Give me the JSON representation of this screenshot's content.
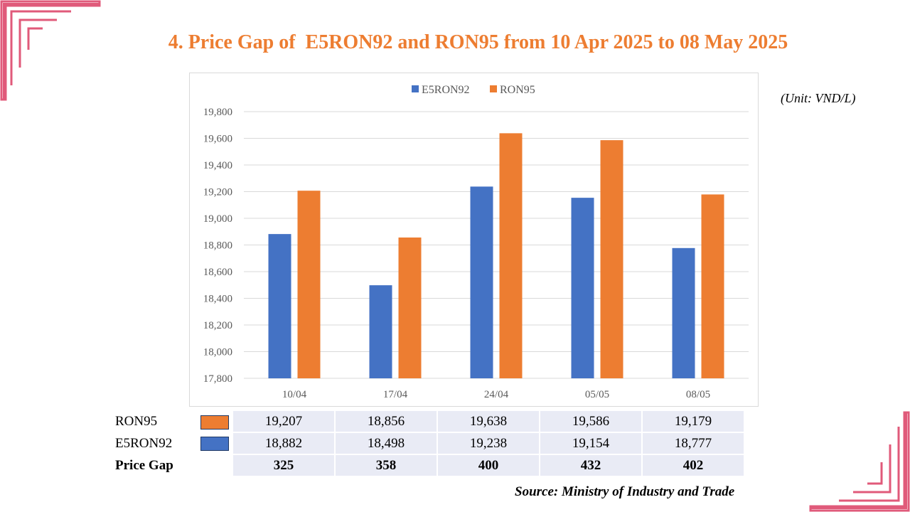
{
  "slide": {
    "title": "4. Price Gap of  E5RON92 and RON95 from 10 Apr 2025 to 08 May 2025",
    "unit": "(Unit: VND/L)",
    "source": "Source: Ministry of Industry and Trade"
  },
  "colors": {
    "accent": "#ed7d31",
    "blue": "#4472c4",
    "deco": "#e05a7a"
  },
  "chart_data": {
    "type": "bar",
    "categories": [
      "10/04",
      "17/04",
      "24/04",
      "05/05",
      "08/05"
    ],
    "series": [
      {
        "name": "E5RON92",
        "color": "#4472c4",
        "values": [
          18882,
          18498,
          19238,
          19154,
          18777
        ]
      },
      {
        "name": "RON95",
        "color": "#ed7d31",
        "values": [
          19207,
          18856,
          19638,
          19586,
          19179
        ]
      }
    ],
    "ylim": [
      17800,
      19800
    ],
    "yticks": [
      17800,
      18000,
      18200,
      18400,
      18600,
      18800,
      19000,
      19200,
      19400,
      19600,
      19800
    ],
    "ytick_labels": [
      "17,800",
      "18,000",
      "18,200",
      "18,400",
      "18,600",
      "18,800",
      "19,000",
      "19,200",
      "19,400",
      "19,600",
      "19,800"
    ],
    "grid": true,
    "legend": "top-center"
  },
  "table": {
    "rows": [
      {
        "label": "RON95",
        "swatch": "#ed7d31",
        "values": [
          "19,207",
          "18,856",
          "19,638",
          "19,586",
          "19,179"
        ]
      },
      {
        "label": "E5RON92",
        "swatch": "#4472c4",
        "values": [
          "18,882",
          "18,498",
          "19,238",
          "19,154",
          "18,777"
        ]
      },
      {
        "label": "Price Gap",
        "values": [
          "325",
          "358",
          "400",
          "432",
          "402"
        ]
      }
    ]
  }
}
